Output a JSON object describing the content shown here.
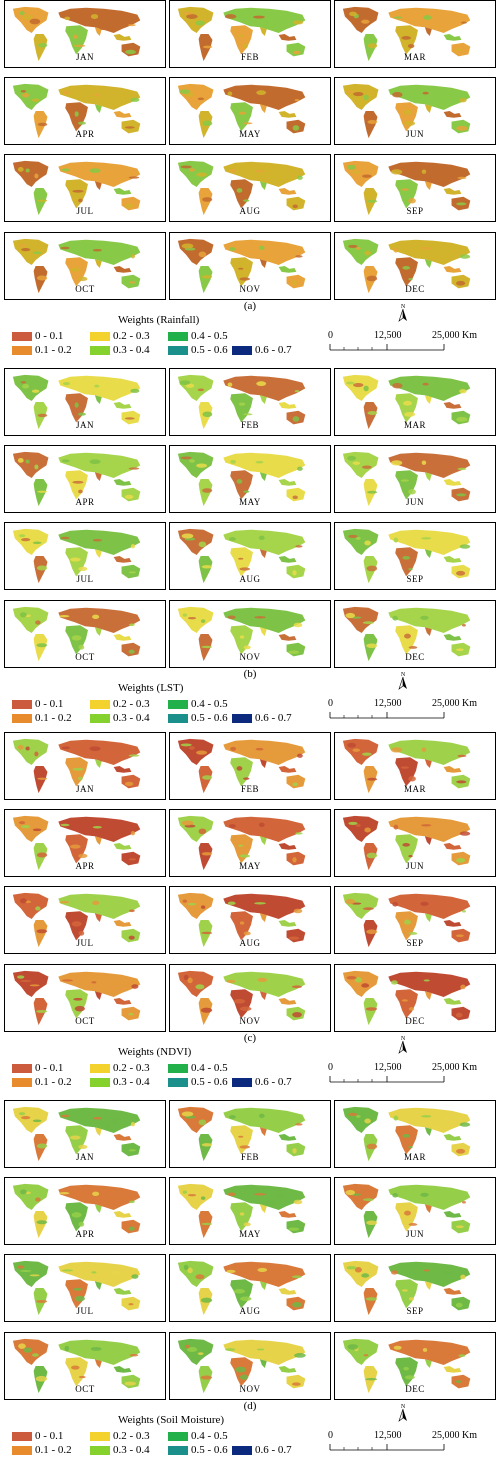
{
  "months": [
    "JAN",
    "FEB",
    "MAR",
    "APR",
    "MAY",
    "JUN",
    "JUL",
    "AUG",
    "SEP",
    "OCT",
    "NOV",
    "DEC"
  ],
  "sections": [
    {
      "label": "(a)",
      "weights_title": "Weights (Rainfall)",
      "dominant": [
        "#e8a33a",
        "#d1b42c",
        "#c26b2f",
        "#88c947"
      ]
    },
    {
      "label": "(b)",
      "weights_title": "Weights (LST)",
      "dominant": [
        "#a6d44a",
        "#e9dc4a",
        "#c9703a",
        "#7ec247"
      ]
    },
    {
      "label": "(c)",
      "weights_title": "Weights (NDVI)",
      "dominant": [
        "#d2653a",
        "#e59b3b",
        "#9fd24a",
        "#c04b33"
      ]
    },
    {
      "label": "(d)",
      "weights_title": "Weights (Soil Moisture)",
      "dominant": [
        "#95cf49",
        "#e6d34a",
        "#d97a3a",
        "#6fb947"
      ]
    }
  ],
  "legend": [
    {
      "range": "0 - 0.1",
      "color": "#cc5a3d"
    },
    {
      "range": "0.1 - 0.2",
      "color": "#e88b2c"
    },
    {
      "range": "0.2 - 0.3",
      "color": "#f4d22d"
    },
    {
      "range": "0.3 - 0.4",
      "color": "#85d12e"
    },
    {
      "range": "0.4 - 0.5",
      "color": "#22b04b"
    },
    {
      "range": "0.5 - 0.6",
      "color": "#1b8f8a"
    },
    {
      "range": "0.6 - 0.7",
      "color": "#0b2a7d"
    }
  ],
  "north_arrow_label": "N",
  "scale_bar": {
    "start": "0",
    "mid": "12,500",
    "end": "25,000 Km"
  }
}
